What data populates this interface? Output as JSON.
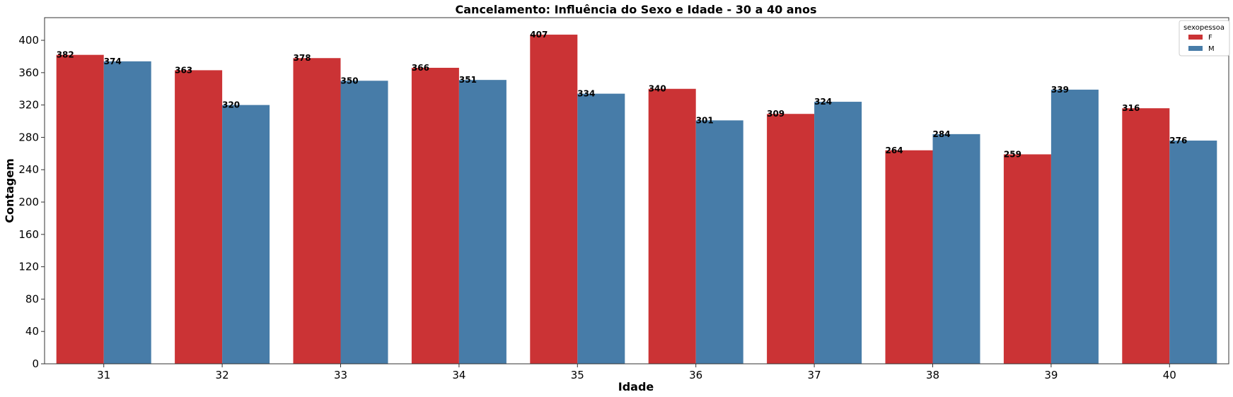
{
  "chart_data": {
    "type": "bar",
    "title": "Cancelamento: Influência do Sexo e Idade - 30 a 40 anos",
    "xlabel": "Idade",
    "ylabel": "Contagem",
    "categories": [
      "31",
      "32",
      "33",
      "34",
      "35",
      "36",
      "37",
      "38",
      "39",
      "40"
    ],
    "series": [
      {
        "name": "F",
        "color": "#cb3335",
        "values": [
          382,
          363,
          378,
          366,
          407,
          340,
          309,
          264,
          259,
          316
        ]
      },
      {
        "name": "M",
        "color": "#477ca8",
        "values": [
          374,
          320,
          350,
          351,
          334,
          301,
          324,
          284,
          339,
          276
        ]
      }
    ],
    "ylim": [
      0,
      428
    ],
    "yticks": [
      0,
      40,
      80,
      120,
      160,
      200,
      240,
      280,
      320,
      360,
      400
    ],
    "grid": false,
    "legend": {
      "title": "sexopessoa",
      "placement": "top-right"
    }
  }
}
